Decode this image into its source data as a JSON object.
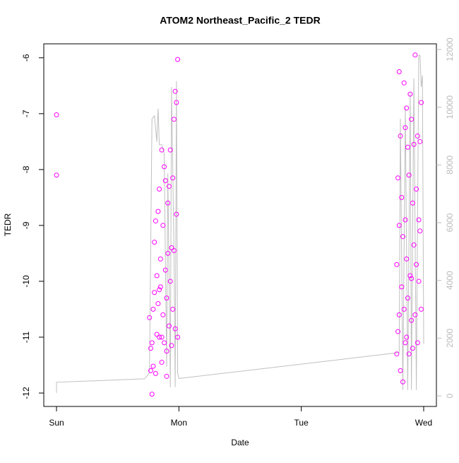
{
  "chart_data": {
    "type": "scatter",
    "title": "ATOM2 Northeast_Pacific_2 TEDR",
    "x_label": "Date",
    "y_label": "TEDR",
    "xlim": [
      -0.104,
      3.104
    ],
    "ylim": [
      -12.24,
      -5.75
    ],
    "y2lim": [
      -367,
      12196
    ],
    "xticks": [
      {
        "value": 0,
        "label": "Sun"
      },
      {
        "value": 1,
        "label": "Mon"
      },
      {
        "value": 2,
        "label": "Tue"
      },
      {
        "value": 3,
        "label": "Wed"
      }
    ],
    "yticks": [
      -12,
      -11,
      -10,
      -9,
      -8,
      -7,
      -6
    ],
    "y2ticks": [
      0,
      2000,
      4000,
      6000,
      8000,
      10000,
      12000
    ],
    "series": [
      {
        "color": "#c0c0c0",
        "axis": "y2",
        "kind": "line",
        "x": [
          0,
          0,
          0.72,
          0.76,
          0.78,
          0.8,
          0.82,
          0.83,
          0.84,
          0.86,
          0.88,
          0.9,
          0.91,
          0.93,
          0.94,
          0.96,
          0.97,
          0.98,
          0.99,
          1.0,
          2.8,
          2.81,
          2.83,
          2.85,
          2.87,
          2.89,
          2.9,
          2.92,
          2.94,
          2.96,
          2.97,
          2.98,
          2.99,
          3.0
        ],
        "values": [
          100,
          470,
          590,
          800,
          9600,
          9700,
          8800,
          9950,
          8700,
          8700,
          8400,
          1000,
          7700,
          300,
          10700,
          5000,
          300,
          10900,
          800,
          600,
          1500,
          9600,
          200,
          10000,
          200,
          10500,
          200,
          11000,
          200,
          11800,
          11800,
          10700,
          11100,
          1800
        ]
      },
      {
        "color": "#ff00ff",
        "kind": "points",
        "x": [
          0,
          0,
          0.76,
          0.77,
          0.77,
          0.78,
          0.78,
          0.79,
          0.79,
          0.8,
          0.8,
          0.81,
          0.81,
          0.82,
          0.82,
          0.83,
          0.83,
          0.84,
          0.84,
          0.85,
          0.85,
          0.86,
          0.86,
          0.87,
          0.87,
          0.88,
          0.88,
          0.89,
          0.89,
          0.9,
          0.9,
          0.91,
          0.91,
          0.92,
          0.92,
          0.93,
          0.93,
          0.94,
          0.94,
          0.95,
          0.95,
          0.96,
          0.96,
          0.97,
          0.97,
          0.98,
          0.98,
          0.99,
          0.99,
          0.86,
          0.84,
          0.9,
          2.78,
          2.78,
          2.79,
          2.79,
          2.8,
          2.8,
          2.81,
          2.81,
          2.82,
          2.82,
          2.83,
          2.83,
          2.84,
          2.84,
          2.85,
          2.85,
          2.86,
          2.86,
          2.87,
          2.87,
          2.88,
          2.88,
          2.89,
          2.89,
          2.9,
          2.9,
          2.91,
          2.91,
          2.92,
          2.92,
          2.93,
          2.93,
          2.94,
          2.94,
          2.95,
          2.95,
          2.96,
          2.96,
          2.97,
          2.97,
          2.98,
          2.98,
          2.8,
          2.85,
          2.9,
          2.86
        ],
        "values": [
          -7.02,
          -8.1,
          -10.65,
          -11.2,
          -11.6,
          -11.1,
          -12.02,
          -10.5,
          -11.52,
          -9.3,
          -10.2,
          -8.92,
          -11.65,
          -9.9,
          -10.95,
          -8.75,
          -10.4,
          -8.35,
          -11.0,
          -9.6,
          -10.1,
          -7.65,
          -11.45,
          -9.0,
          -10.6,
          -7.95,
          -11.1,
          -8.2,
          -9.8,
          -10.3,
          -11.25,
          -8.6,
          -9.5,
          -10.8,
          -8.3,
          -7.65,
          -10.0,
          -9.4,
          -11.15,
          -8.15,
          -10.5,
          -7.1,
          -9.45,
          -6.6,
          -10.85,
          -6.8,
          -8.8,
          -6.03,
          -11.0,
          -11.0,
          -10.15,
          -11.7,
          -9.7,
          -11.3,
          -8.15,
          -10.9,
          -6.25,
          -9.0,
          -11.6,
          -7.4,
          -10.1,
          -8.5,
          -11.8,
          -9.2,
          -6.45,
          -10.5,
          -7.25,
          -8.9,
          -11.0,
          -9.6,
          -7.6,
          -10.3,
          -8.1,
          -11.3,
          -6.65,
          -9.9,
          -7.1,
          -10.7,
          -8.6,
          -11.2,
          -9.35,
          -7.55,
          -10.6,
          -5.95,
          -8.35,
          -9.7,
          -7.4,
          -11.1,
          -8.9,
          -10.0,
          -7.5,
          -9.1,
          -6.8,
          -10.5,
          -10.6,
          -11.1,
          -9.95,
          -6.9
        ]
      }
    ]
  }
}
